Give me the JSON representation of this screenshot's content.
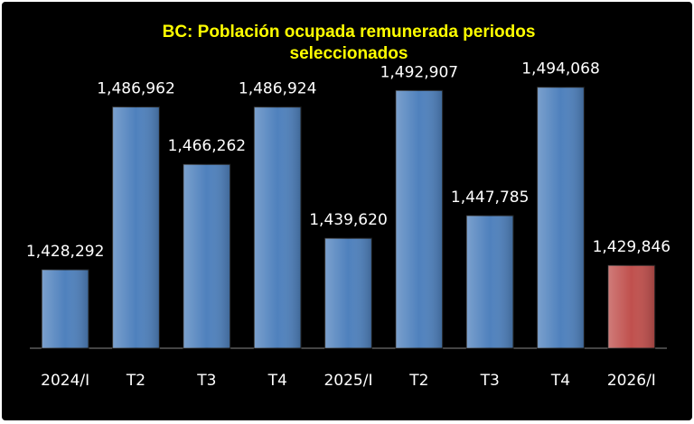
{
  "chart_data": {
    "type": "bar",
    "title": "BC: Población ocupada remunerada periodos seleccionados",
    "categories": [
      "2024/I",
      "T2",
      "T3",
      "T4",
      "2025/I",
      "T2",
      "T3",
      "T4",
      "2026/I"
    ],
    "values": [
      1428292,
      1486962,
      1466262,
      1486924,
      1439620,
      1492907,
      1447785,
      1494068,
      1429846
    ],
    "value_labels": [
      "1,428,292",
      "1,486,962",
      "1,466,262",
      "1,486,924",
      "1,439,620",
      "1,492,907",
      "1,447,785",
      "1,494,068",
      "1,429,846"
    ],
    "colors": [
      "#4f81bd",
      "#4f81bd",
      "#4f81bd",
      "#4f81bd",
      "#4f81bd",
      "#4f81bd",
      "#4f81bd",
      "#4f81bd",
      "#c0504d"
    ],
    "ylim": [
      1400000,
      1520000
    ]
  }
}
